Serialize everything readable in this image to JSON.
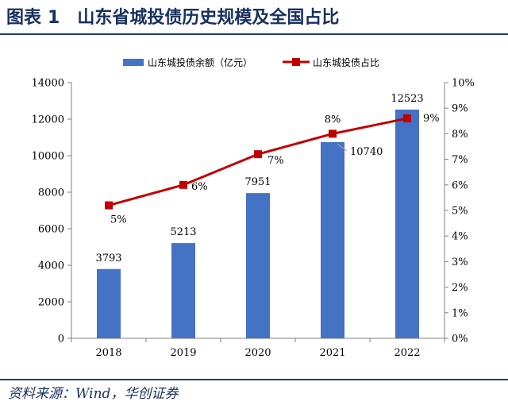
{
  "header": {
    "figure_label": "图表",
    "figure_number": "1",
    "title": "山东省城投债历史规模及全国占比"
  },
  "footer": {
    "source": "资料来源：Wind，华创证券"
  },
  "colors": {
    "bar": "#4472c4",
    "line": "#c00000",
    "title": "#16305f"
  },
  "chart_data": {
    "type": "bar",
    "title": "山东省城投债历史规模及全国占比",
    "categories": [
      "2018",
      "2019",
      "2020",
      "2021",
      "2022"
    ],
    "series": [
      {
        "name": "山东城投债余额（亿元）",
        "kind": "bar",
        "axis": "left",
        "values": [
          3793,
          5213,
          7951,
          10740,
          12523
        ],
        "labels": [
          "3793",
          "5213",
          "7951",
          "10740",
          "12523"
        ]
      },
      {
        "name": "山东城投债占比",
        "kind": "line",
        "axis": "right",
        "values": [
          5.2,
          6.0,
          7.2,
          8.0,
          8.6
        ],
        "labels": [
          "5%",
          "6%",
          "7%",
          "8%",
          "9%"
        ]
      }
    ],
    "left_axis": {
      "ylim": [
        0,
        14000
      ],
      "ticks": [
        "0",
        "2000",
        "4000",
        "6000",
        "8000",
        "10000",
        "12000",
        "14000"
      ]
    },
    "right_axis": {
      "ylim": [
        0,
        10
      ],
      "ticks": [
        "0%",
        "1%",
        "2%",
        "3%",
        "4%",
        "5%",
        "6%",
        "7%",
        "8%",
        "9%",
        "10%"
      ]
    },
    "legend_position": "top-center",
    "grid": false
  }
}
